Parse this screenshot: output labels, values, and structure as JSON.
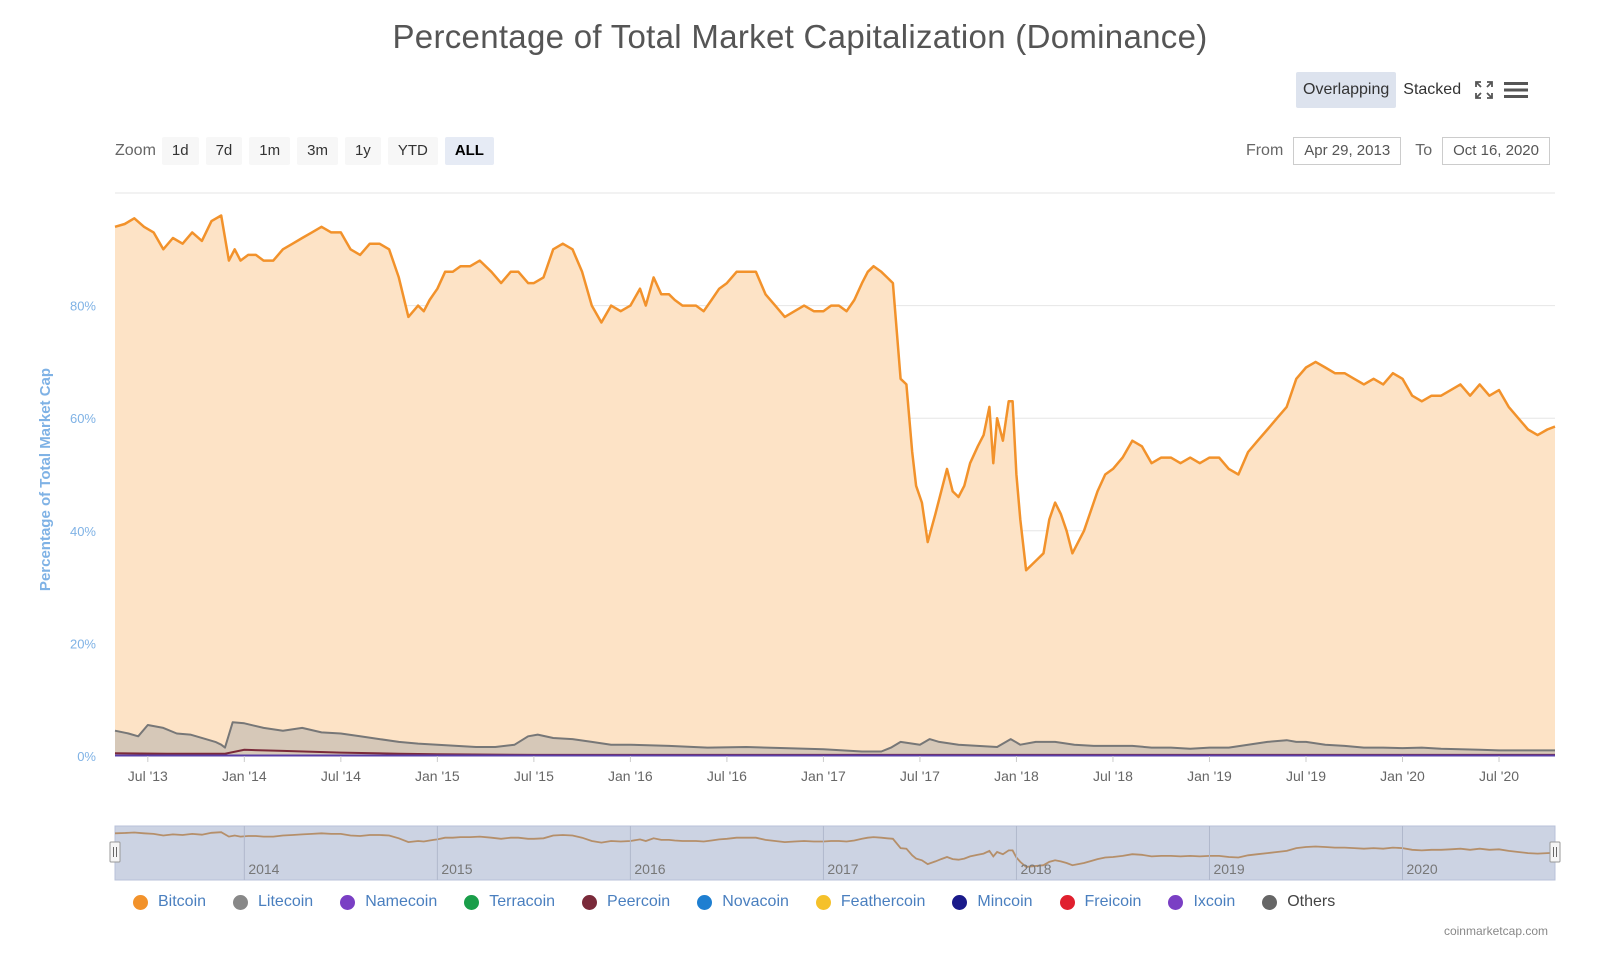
{
  "title": "Percentage of Total Market Capitalization (Dominance)",
  "modes": [
    "Overlapping",
    "Stacked"
  ],
  "active_mode": "Overlapping",
  "toolbar_icons": [
    "fullscreen-icon",
    "menu-icon"
  ],
  "zoom": {
    "label": "Zoom",
    "buttons": [
      "1d",
      "7d",
      "1m",
      "3m",
      "1y",
      "YTD",
      "ALL"
    ],
    "active": "ALL"
  },
  "range": {
    "from_label": "From",
    "from_value": "Apr 29, 2013",
    "to_label": "To",
    "to_value": "Oct 16, 2020"
  },
  "credit": "coinmarketcap.com",
  "colors": {
    "bitcoin_line": "#f2922b",
    "bitcoin_fill": "#fde3c6",
    "litecoin_line": "#777777",
    "litecoin_fill": "#d6c8b8",
    "grid": "#e6e6e6",
    "axis_label": "#7fb2e5",
    "navigator_bg": "#ccd3e3"
  },
  "chart_data": {
    "type": "area",
    "ylabel": "Percentage of Total Market Cap",
    "y_ticks": [
      "0%",
      "20%",
      "40%",
      "60%",
      "80%"
    ],
    "ylim": [
      0,
      100
    ],
    "x_ticks": [
      {
        "label": "Jul '13",
        "x": 2013.5
      },
      {
        "label": "Jan '14",
        "x": 2014.0
      },
      {
        "label": "Jul '14",
        "x": 2014.5
      },
      {
        "label": "Jan '15",
        "x": 2015.0
      },
      {
        "label": "Jul '15",
        "x": 2015.5
      },
      {
        "label": "Jan '16",
        "x": 2016.0
      },
      {
        "label": "Jul '16",
        "x": 2016.5
      },
      {
        "label": "Jan '17",
        "x": 2017.0
      },
      {
        "label": "Jul '17",
        "x": 2017.5
      },
      {
        "label": "Jan '18",
        "x": 2018.0
      },
      {
        "label": "Jul '18",
        "x": 2018.5
      },
      {
        "label": "Jan '19",
        "x": 2019.0
      },
      {
        "label": "Jul '19",
        "x": 2019.5
      },
      {
        "label": "Jan '20",
        "x": 2020.0
      },
      {
        "label": "Jul '20",
        "x": 2020.5
      }
    ],
    "xlim": [
      2013.33,
      2020.79
    ],
    "legend": [
      {
        "name": "Bitcoin",
        "color": "#f2922b"
      },
      {
        "name": "Litecoin",
        "color": "#888888"
      },
      {
        "name": "Namecoin",
        "color": "#7a3fc4"
      },
      {
        "name": "Terracoin",
        "color": "#1a9e4a"
      },
      {
        "name": "Peercoin",
        "color": "#7a2a3a"
      },
      {
        "name": "Novacoin",
        "color": "#1f7fd1"
      },
      {
        "name": "Feathercoin",
        "color": "#f5c12a"
      },
      {
        "name": "Mincoin",
        "color": "#1a1a8a"
      },
      {
        "name": "Freicoin",
        "color": "#e0202e"
      },
      {
        "name": "Ixcoin",
        "color": "#7a3fc4"
      },
      {
        "name": "Others",
        "color": "#666666"
      }
    ],
    "navigator_labels": [
      {
        "label": "2014",
        "x": 2014.0
      },
      {
        "label": "2015",
        "x": 2015.0
      },
      {
        "label": "2016",
        "x": 2016.0
      },
      {
        "label": "2017",
        "x": 2017.0
      },
      {
        "label": "2018",
        "x": 2018.0
      },
      {
        "label": "2019",
        "x": 2019.0
      },
      {
        "label": "2020",
        "x": 2020.0
      }
    ],
    "series": [
      {
        "name": "Bitcoin",
        "x": [
          2013.33,
          2013.38,
          2013.43,
          2013.48,
          2013.53,
          2013.58,
          2013.63,
          2013.68,
          2013.73,
          2013.78,
          2013.83,
          2013.88,
          2013.92,
          2013.95,
          2013.98,
          2014.02,
          2014.06,
          2014.1,
          2014.15,
          2014.2,
          2014.25,
          2014.3,
          2014.35,
          2014.4,
          2014.45,
          2014.5,
          2014.55,
          2014.6,
          2014.65,
          2014.7,
          2014.75,
          2014.8,
          2014.85,
          2014.9,
          2014.93,
          2014.96,
          2014.98,
          2015.0,
          2015.04,
          2015.08,
          2015.12,
          2015.17,
          2015.22,
          2015.28,
          2015.33,
          2015.38,
          2015.42,
          2015.47,
          2015.5,
          2015.55,
          2015.6,
          2015.65,
          2015.7,
          2015.75,
          2015.8,
          2015.85,
          2015.9,
          2015.95,
          2016.0,
          2016.05,
          2016.08,
          2016.12,
          2016.16,
          2016.2,
          2016.23,
          2016.27,
          2016.3,
          2016.34,
          2016.38,
          2016.42,
          2016.46,
          2016.5,
          2016.55,
          2016.6,
          2016.65,
          2016.7,
          2016.75,
          2016.8,
          2016.85,
          2016.9,
          2016.95,
          2017.0,
          2017.04,
          2017.08,
          2017.12,
          2017.16,
          2017.2,
          2017.23,
          2017.26,
          2017.3,
          2017.33,
          2017.36,
          2017.4,
          2017.43,
          2017.46,
          2017.48,
          2017.51,
          2017.54,
          2017.58,
          2017.61,
          2017.64,
          2017.67,
          2017.7,
          2017.73,
          2017.76,
          2017.8,
          2017.83,
          2017.86,
          2017.88,
          2017.9,
          2017.93,
          2017.96,
          2017.98,
          2018.0,
          2018.02,
          2018.05,
          2018.08,
          2018.11,
          2018.14,
          2018.17,
          2018.2,
          2018.23,
          2018.26,
          2018.29,
          2018.32,
          2018.35,
          2018.38,
          2018.42,
          2018.46,
          2018.5,
          2018.55,
          2018.6,
          2018.65,
          2018.7,
          2018.75,
          2018.8,
          2018.85,
          2018.9,
          2018.95,
          2019.0,
          2019.05,
          2019.1,
          2019.15,
          2019.2,
          2019.25,
          2019.3,
          2019.35,
          2019.4,
          2019.45,
          2019.5,
          2019.55,
          2019.6,
          2019.65,
          2019.7,
          2019.75,
          2019.8,
          2019.85,
          2019.9,
          2019.95,
          2020.0,
          2020.05,
          2020.1,
          2020.15,
          2020.2,
          2020.25,
          2020.3,
          2020.35,
          2020.4,
          2020.45,
          2020.5,
          2020.55,
          2020.6,
          2020.65,
          2020.7,
          2020.75,
          2020.79
        ],
        "y": [
          94,
          94.5,
          95.5,
          94,
          93,
          90,
          92,
          91,
          93,
          91.5,
          95,
          96,
          88,
          90,
          88,
          89,
          89,
          88,
          88,
          90,
          91,
          92,
          93,
          94,
          93,
          93,
          90,
          89,
          91,
          91,
          90,
          85,
          78,
          80,
          79,
          81,
          82,
          83,
          86,
          86,
          87,
          87,
          88,
          86,
          84,
          86,
          86,
          84,
          84,
          85,
          90,
          91,
          90,
          86,
          80,
          77,
          80,
          79,
          80,
          83,
          80,
          85,
          82,
          82,
          81,
          80,
          80,
          80,
          79,
          81,
          83,
          84,
          86,
          86,
          86,
          82,
          80,
          78,
          79,
          80,
          79,
          79,
          80,
          80,
          79,
          81,
          84,
          86,
          87,
          86,
          85,
          84,
          67,
          66,
          54,
          48,
          45,
          38,
          43,
          47,
          51,
          47,
          46,
          48,
          52,
          55,
          57,
          62,
          52,
          60,
          56,
          63,
          63,
          50,
          42,
          33,
          34,
          35,
          36,
          42,
          45,
          43,
          40,
          36,
          38,
          40,
          43,
          47,
          50,
          51,
          53,
          56,
          55,
          52,
          53,
          53,
          52,
          53,
          52,
          53,
          53,
          51,
          50,
          54,
          56,
          58,
          60,
          62,
          67,
          69,
          70,
          69,
          68,
          68,
          67,
          66,
          67,
          66,
          68,
          67,
          64,
          63,
          64,
          64,
          65,
          66,
          64,
          66,
          64,
          65,
          62,
          60,
          58,
          57,
          58,
          58.5
        ]
      },
      {
        "name": "Litecoin",
        "x": [
          2013.33,
          2013.4,
          2013.45,
          2013.5,
          2013.58,
          2013.65,
          2013.72,
          2013.8,
          2013.85,
          2013.88,
          2013.9,
          2013.94,
          2014.0,
          2014.1,
          2014.2,
          2014.3,
          2014.4,
          2014.5,
          2014.6,
          2014.7,
          2014.8,
          2014.9,
          2015.0,
          2015.1,
          2015.2,
          2015.3,
          2015.4,
          2015.47,
          2015.52,
          2015.6,
          2015.7,
          2015.8,
          2015.9,
          2016.0,
          2016.2,
          2016.4,
          2016.6,
          2016.8,
          2017.0,
          2017.1,
          2017.2,
          2017.3,
          2017.35,
          2017.4,
          2017.5,
          2017.55,
          2017.6,
          2017.7,
          2017.8,
          2017.9,
          2017.97,
          2018.02,
          2018.1,
          2018.2,
          2018.3,
          2018.4,
          2018.5,
          2018.6,
          2018.7,
          2018.8,
          2018.9,
          2019.0,
          2019.1,
          2019.2,
          2019.3,
          2019.4,
          2019.45,
          2019.5,
          2019.6,
          2019.7,
          2019.8,
          2019.9,
          2020.0,
          2020.1,
          2020.2,
          2020.3,
          2020.4,
          2020.5,
          2020.6,
          2020.7,
          2020.79
        ],
        "y": [
          4.5,
          4,
          3.5,
          5.5,
          5,
          4,
          3.8,
          3,
          2.5,
          2,
          1.5,
          6,
          5.8,
          5,
          4.5,
          5,
          4.2,
          4,
          3.5,
          3,
          2.5,
          2.2,
          2,
          1.8,
          1.6,
          1.6,
          2,
          3.5,
          3.8,
          3.2,
          3,
          2.5,
          2,
          2,
          1.8,
          1.5,
          1.6,
          1.4,
          1.2,
          1,
          0.8,
          0.8,
          1.5,
          2.5,
          2,
          3,
          2.5,
          2,
          1.8,
          1.6,
          3,
          2,
          2.5,
          2.5,
          2,
          1.8,
          1.8,
          1.8,
          1.5,
          1.5,
          1.3,
          1.5,
          1.5,
          2,
          2.5,
          2.8,
          2.5,
          2.5,
          2,
          1.8,
          1.5,
          1.5,
          1.4,
          1.5,
          1.3,
          1.2,
          1.1,
          1,
          1,
          1,
          1
        ]
      },
      {
        "name": "Others",
        "x": [
          2013.33,
          2013.6,
          2013.9,
          2014.0,
          2014.2,
          2014.5,
          2014.8,
          2015.0,
          2015.5,
          2016.0,
          2017.0,
          2018.0,
          2019.0,
          2020.0,
          2020.79
        ],
        "y": [
          0.5,
          0.4,
          0.4,
          1.1,
          0.9,
          0.6,
          0.4,
          0.3,
          0.2,
          0.2,
          0.2,
          0.2,
          0.2,
          0.2,
          0.2
        ]
      }
    ],
    "navigator_series": "Bitcoin"
  }
}
